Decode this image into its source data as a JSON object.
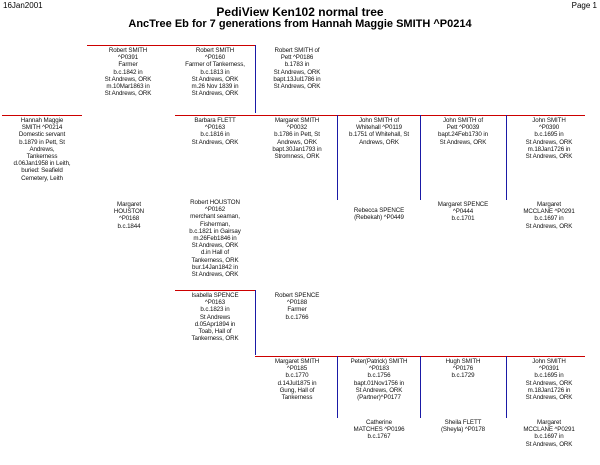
{
  "header": {
    "date": "16Jan2001",
    "page": "Page 1",
    "title": "PediView Ken102 normal tree",
    "subtitle": "AncTree Eb for 7 generations from Hannah Maggie SMITH ^P0214"
  },
  "people": {
    "hannah": "Hannah Maggie\nSMITH ^P0214\nDomestic servant\nb.1879 in Pett, St\nAndrews,\nTankerness\nd.06Jan1958 in Leith,\nburied: Seafield\nCemetery, Leith",
    "margaret_houston": "Margaret\nHOUSTON\n^P0168\nb.c.1844",
    "robert_smith_1": "Robert SMITH\n^P0391\nFarmer\nb.c.1842 in\nSt Andrews, ORK\nm.10Mar1863 in\nSt Andrews, ORK",
    "robert_smith_2": "Robert SMITH\n^P0160\nFarmer of Tankerness,\nb.c.1813 in\nSt Andrews, ORK\nm.26 Nov 1839 in\nSt Andrews, ORK",
    "robert_smith_3": "Robert SMITH of\nPett ^P0186\nb.1783 in\nSt Andrews, ORK\nbapt.13Jul1786 in\nSt Andrews, ORK",
    "barbara_flett": "Barbara FLETT\n^P0163\nb.c.1816 in\nSt Andrews, ORK",
    "margaret_smith_1": "Margaret SMITH\n^P0032\nb.1786 in Pett, St\nAndrews, ORK\nbapt.30Jan1793 in\nStromness, ORK",
    "john_smith_1": "John SMITH of\nWhitehall ^P0119\nb.1751 of Whitehall, St\nAndrews, ORK",
    "john_smith_2": "John SMITH of\nPett ^P0039\nbapt.24Feb1730 in\nSt Andrews, ORK",
    "john_smith_3": "John SMITH\n^P0390\nb.c.1695 in\nSt Andrews, ORK\nm.18Jan1726 in\nSt Andrews, ORK",
    "rebecca_spence": "Rebecca SPENCE\n(Rebekah) ^P0449",
    "margaret_spence": "Margaret SPENCE\n^P0444\nb.c.1701",
    "margaret_mcclane_1": "Margaret\nMCCLANE ^P0291\nb.c.1697 in\nSt Andrews, ORK",
    "robert_houston": "Robert HOUSTON\n^P0162\nmerchant seaman,\nFisherman,\nb.c.1821 in Gairsay\nm.26Feb1846 in\nSt Andrews, ORK\nd.in Hall of\nTankerness, ORK\nbur.14Jan1842 in\nSt Andrews, ORK",
    "isabella_spence": "Isabella SPENCE\n^P0163\nb.c.1823 in\nSt Andrews\nd.05Apr1894 in\nToab, Hall of\nTankerness, ORK",
    "robert_spence": "Robert SPENCE\n^P0188\nFarmer\nb.c.1766",
    "margaret_smith_2": "Margaret SMITH\n^P0185\nb.c.1770\nd.14Jul1875 in\nGung, Hall of\nTankerness",
    "peter_smith": "Peter(Patrick) SMITH\n^P0183\nb.c.1756\nbapt.01Nov1756 in\nSt Andrews, ORK\n(Partner)^P0177",
    "hugh_smith": "Hugh SMITH\n^P0176\nb.c.1729",
    "john_smith_4": "John SMITH\n^P0391\nb.c.1695 in\nSt Andrews, ORK\nm.18Jan1726 in\nSt Andrews, ORK",
    "catherine_matches": "Catherine\nMATCHES ^P0196\nb.c.1767",
    "sheila_flett": "Sheila FLETT\n(Sheyla) ^P0178",
    "margaret_mcclane_2": "Margaret\nMCCLANE ^P0291\nb.c.1697 in\nSt Andrews, ORK"
  }
}
